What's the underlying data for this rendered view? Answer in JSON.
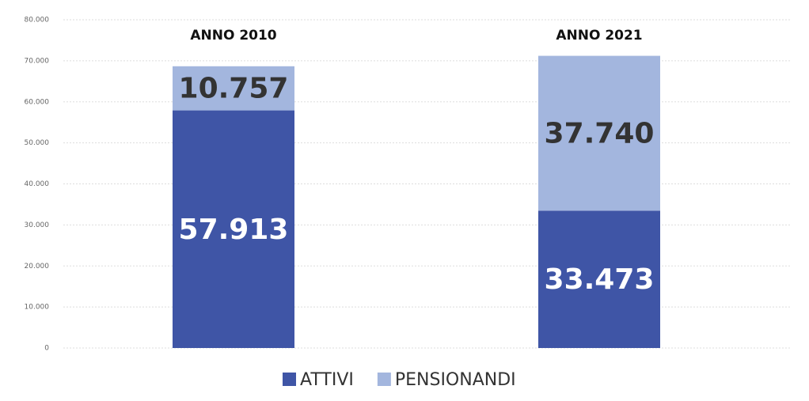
{
  "chart_data": {
    "type": "stacked_bar",
    "categories": [
      "ANNO 2010",
      "ANNO 2021"
    ],
    "series": [
      {
        "name": "ATTIVI",
        "color": "#3f55a6",
        "values": [
          57913,
          33473
        ],
        "value_labels": [
          "57.913",
          "33.473"
        ]
      },
      {
        "name": "PENSIONANDI",
        "color": "#a3b6de",
        "values": [
          10757,
          37740
        ],
        "value_labels": [
          "10.757",
          "37.740"
        ]
      }
    ],
    "ylim": [
      0,
      80000
    ],
    "yticks": [
      0,
      {
        "value": 10000,
        "label": "10.000"
      },
      {
        "value": 20000,
        "label": "20.000"
      },
      {
        "value": 30000,
        "label": "30.000"
      },
      {
        "value": 40000,
        "label": "40.000"
      },
      {
        "value": 50000,
        "label": "50.000"
      },
      {
        "value": 60000,
        "label": "60.000"
      },
      {
        "value": 70000,
        "label": "70.000"
      },
      {
        "value": 80000,
        "label": "80.000"
      }
    ],
    "grid": true,
    "legend": "bottom"
  }
}
